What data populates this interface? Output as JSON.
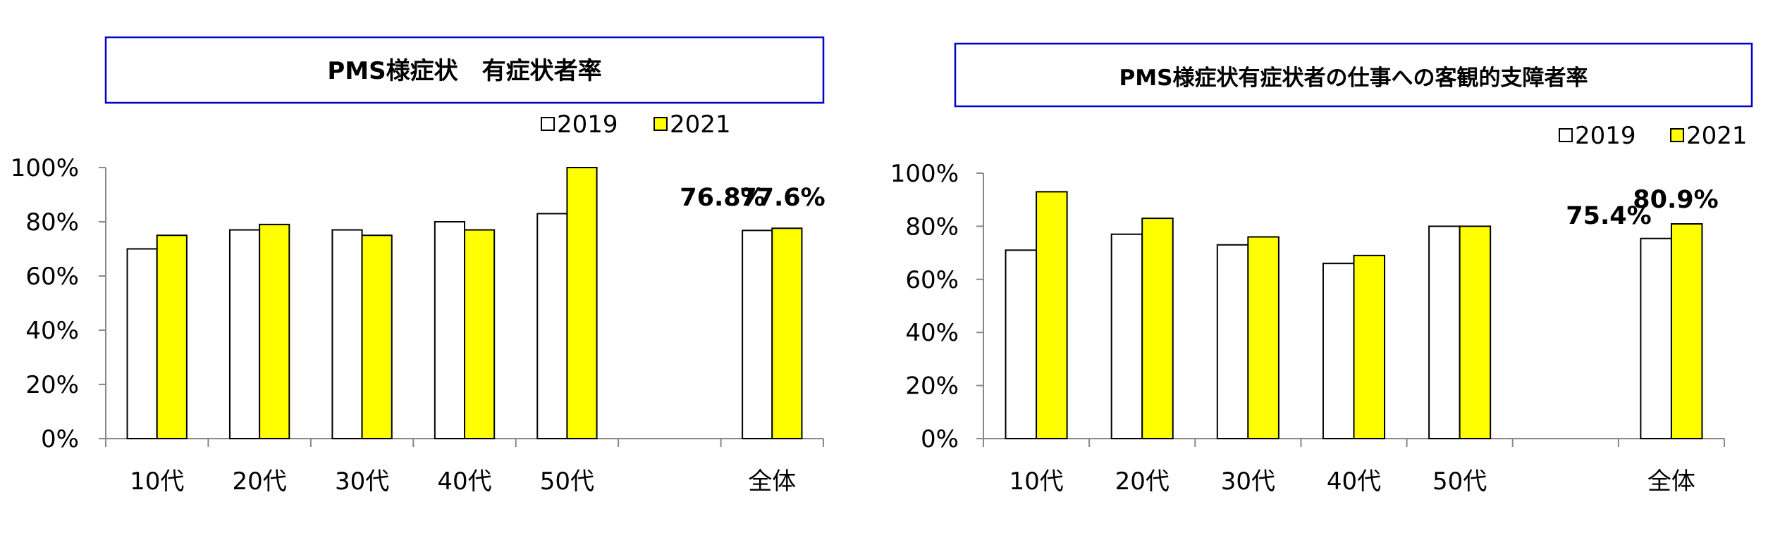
{
  "chart_data": [
    {
      "type": "bar",
      "title": "PMS様症状　有症状者率",
      "categories": [
        "10代",
        "20代",
        "30代",
        "40代",
        "50代",
        "",
        "全体"
      ],
      "series": [
        {
          "name": "2019",
          "color": "#ffffff",
          "values": [
            70,
            77,
            77,
            80,
            83,
            null,
            76.8
          ]
        },
        {
          "name": "2021",
          "color": "#ffff00",
          "values": [
            75,
            79,
            75,
            77,
            100,
            null,
            77.6
          ]
        }
      ],
      "yticks": [
        "0%",
        "20%",
        "40%",
        "60%",
        "80%",
        "100%"
      ],
      "ylim": [
        0,
        100
      ],
      "data_labels": [
        "76.8%",
        "77.6%"
      ],
      "legend": "top-right"
    },
    {
      "type": "bar",
      "title": "PMS様症状有症状者の仕事への客観的支障者率",
      "categories": [
        "10代",
        "20代",
        "30代",
        "40代",
        "50代",
        "",
        "全体"
      ],
      "series": [
        {
          "name": "2019",
          "color": "#ffffff",
          "values": [
            71,
            77,
            73,
            66,
            80,
            null,
            75.4
          ]
        },
        {
          "name": "2021",
          "color": "#ffff00",
          "values": [
            93,
            83,
            76,
            69,
            80,
            null,
            80.9
          ]
        }
      ],
      "yticks": [
        "0%",
        "20%",
        "40%",
        "60%",
        "80%",
        "100%"
      ],
      "ylim": [
        0,
        100
      ],
      "data_labels": [
        "75.4%",
        "80.9%"
      ],
      "legend": "top-right"
    }
  ]
}
